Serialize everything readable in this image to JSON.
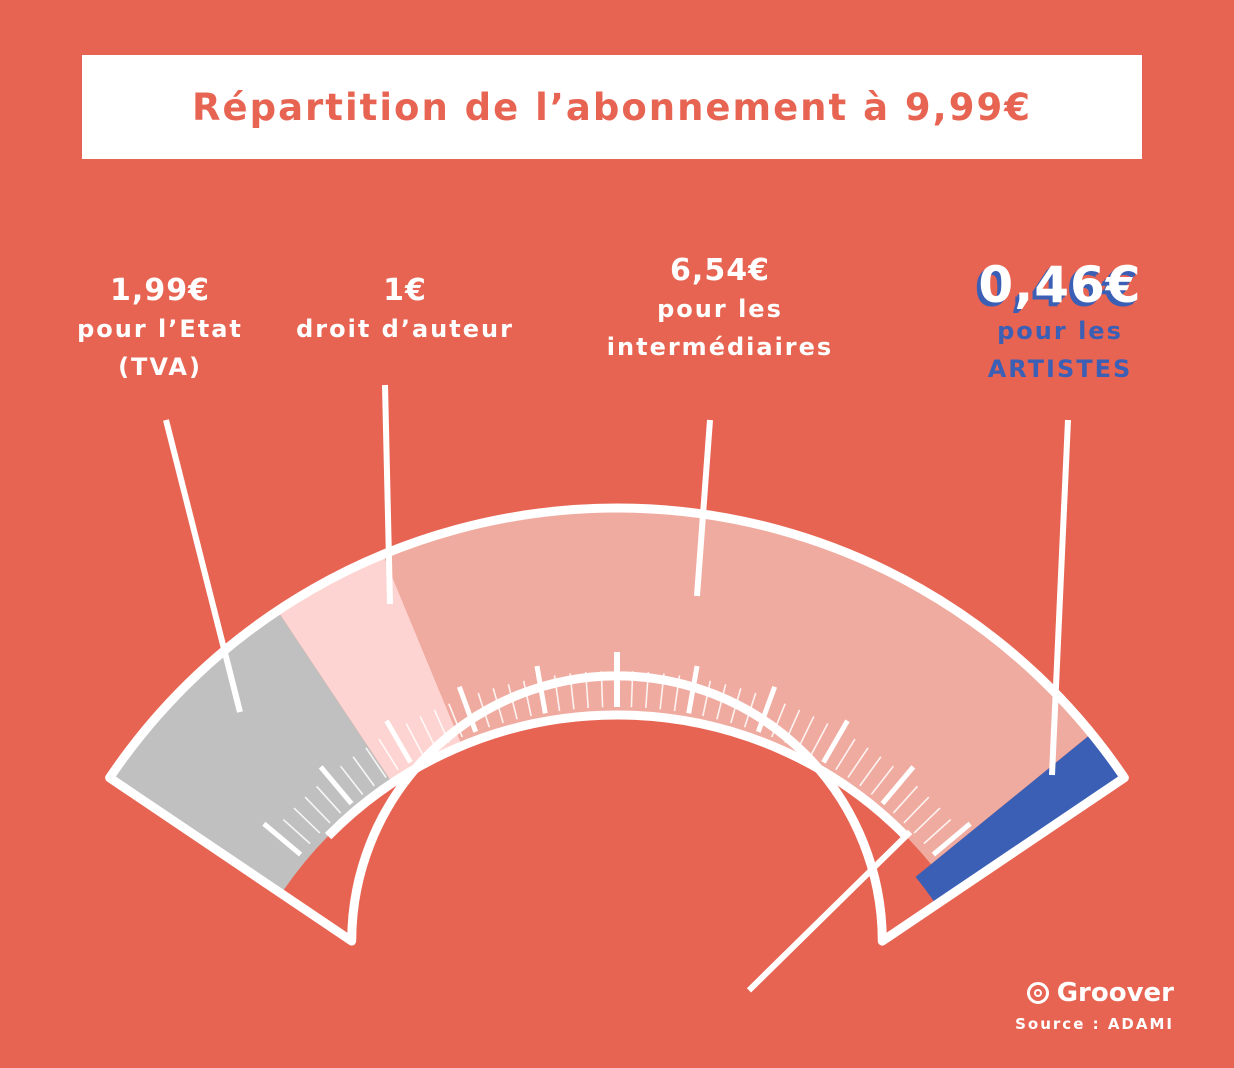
{
  "title": "Répartition de l’abonnement à 9,99€",
  "chart_data": {
    "type": "pie",
    "variant": "gauge",
    "total": 9.99,
    "segments": [
      {
        "amount_label": "1,99€",
        "desc_lines": [
          "pour l’Etat",
          "(TVA)"
        ],
        "value": 1.99,
        "color": "#c0c0c0"
      },
      {
        "amount_label": "1€",
        "desc_lines": [
          "droit d’auteur"
        ],
        "value": 1.0,
        "color": "#fdd4d1"
      },
      {
        "amount_label": "6,54€",
        "desc_lines": [
          "pour les",
          "intermédiaires"
        ],
        "value": 6.54,
        "color": "#f0aba0"
      },
      {
        "amount_label": "0,46€",
        "desc_lines": [
          "pour les",
          "ARTISTES"
        ],
        "value": 0.46,
        "color": "#3a5fb5"
      }
    ]
  },
  "brand": {
    "name": "Groover",
    "icon": "groover-logo-icon"
  },
  "source": "Source : ADAMI"
}
